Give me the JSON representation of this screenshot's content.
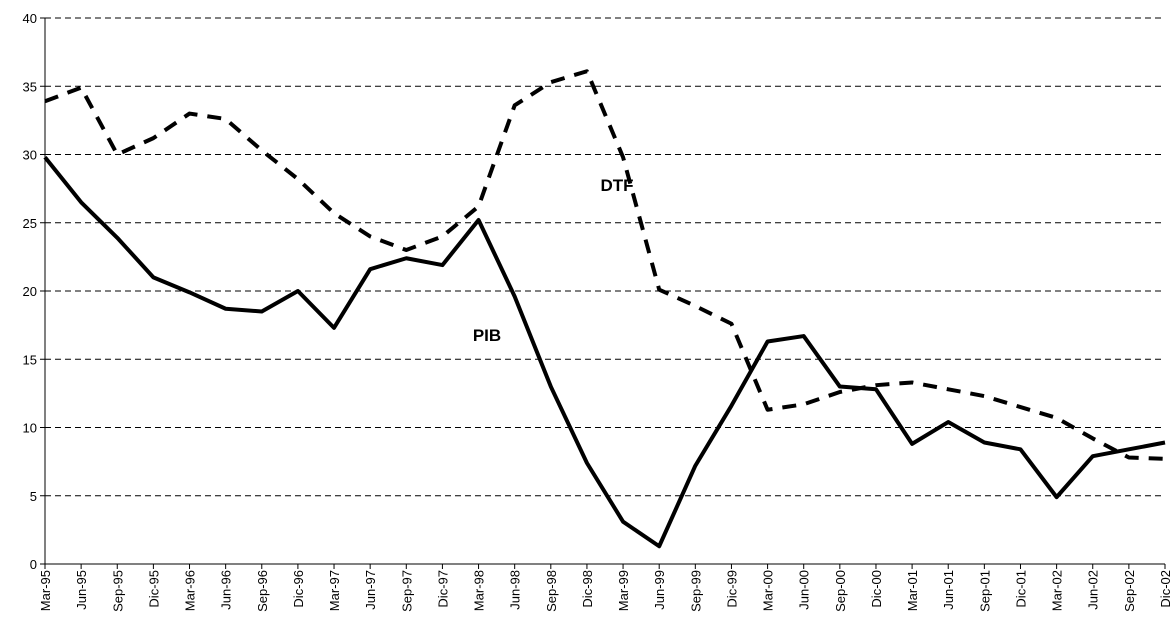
{
  "chart_data": {
    "type": "line",
    "categories": [
      "Mar-95",
      "Jun-95",
      "Sep-95",
      "Dic-95",
      "Mar-96",
      "Jun-96",
      "Sep-96",
      "Dic-96",
      "Mar-97",
      "Jun-97",
      "Sep-97",
      "Dic-97",
      "Mar-98",
      "Jun-98",
      "Sep-98",
      "Dic-98",
      "Mar-99",
      "Jun-99",
      "Sep-99",
      "Dic-99",
      "Mar-00",
      "Jun-00",
      "Sep-00",
      "Dic-00",
      "Mar-01",
      "Jun-01",
      "Sep-01",
      "Dic-01",
      "Mar-02",
      "Jun-02",
      "Sep-02",
      "Dic-02"
    ],
    "series": [
      {
        "name": "PIB",
        "color": "#000000",
        "dash": false,
        "values": [
          29.8,
          26.5,
          23.9,
          21.0,
          19.9,
          18.7,
          18.5,
          20.0,
          17.3,
          21.6,
          22.4,
          21.9,
          25.2,
          19.6,
          13.0,
          7.4,
          3.1,
          1.3,
          7.2,
          11.6,
          16.3,
          16.7,
          13.0,
          12.8,
          8.8,
          10.4,
          8.9,
          8.4,
          4.9,
          7.9,
          8.4,
          8.9
        ]
      },
      {
        "name": "DTF",
        "color": "#000000",
        "dash": true,
        "values": [
          33.9,
          34.9,
          30.0,
          31.2,
          33.0,
          32.6,
          30.3,
          28.2,
          25.7,
          24.0,
          23.0,
          24.0,
          26.2,
          33.6,
          35.3,
          36.1,
          29.8,
          20.1,
          18.9,
          17.6,
          11.3,
          11.7,
          12.6,
          13.1,
          13.3,
          12.8,
          12.3,
          11.5,
          10.7,
          9.2,
          7.8,
          7.7
        ]
      }
    ],
    "ylim": [
      0,
      40
    ],
    "yticks": [
      0,
      5,
      10,
      15,
      20,
      25,
      30,
      35,
      40
    ],
    "grid": true
  }
}
